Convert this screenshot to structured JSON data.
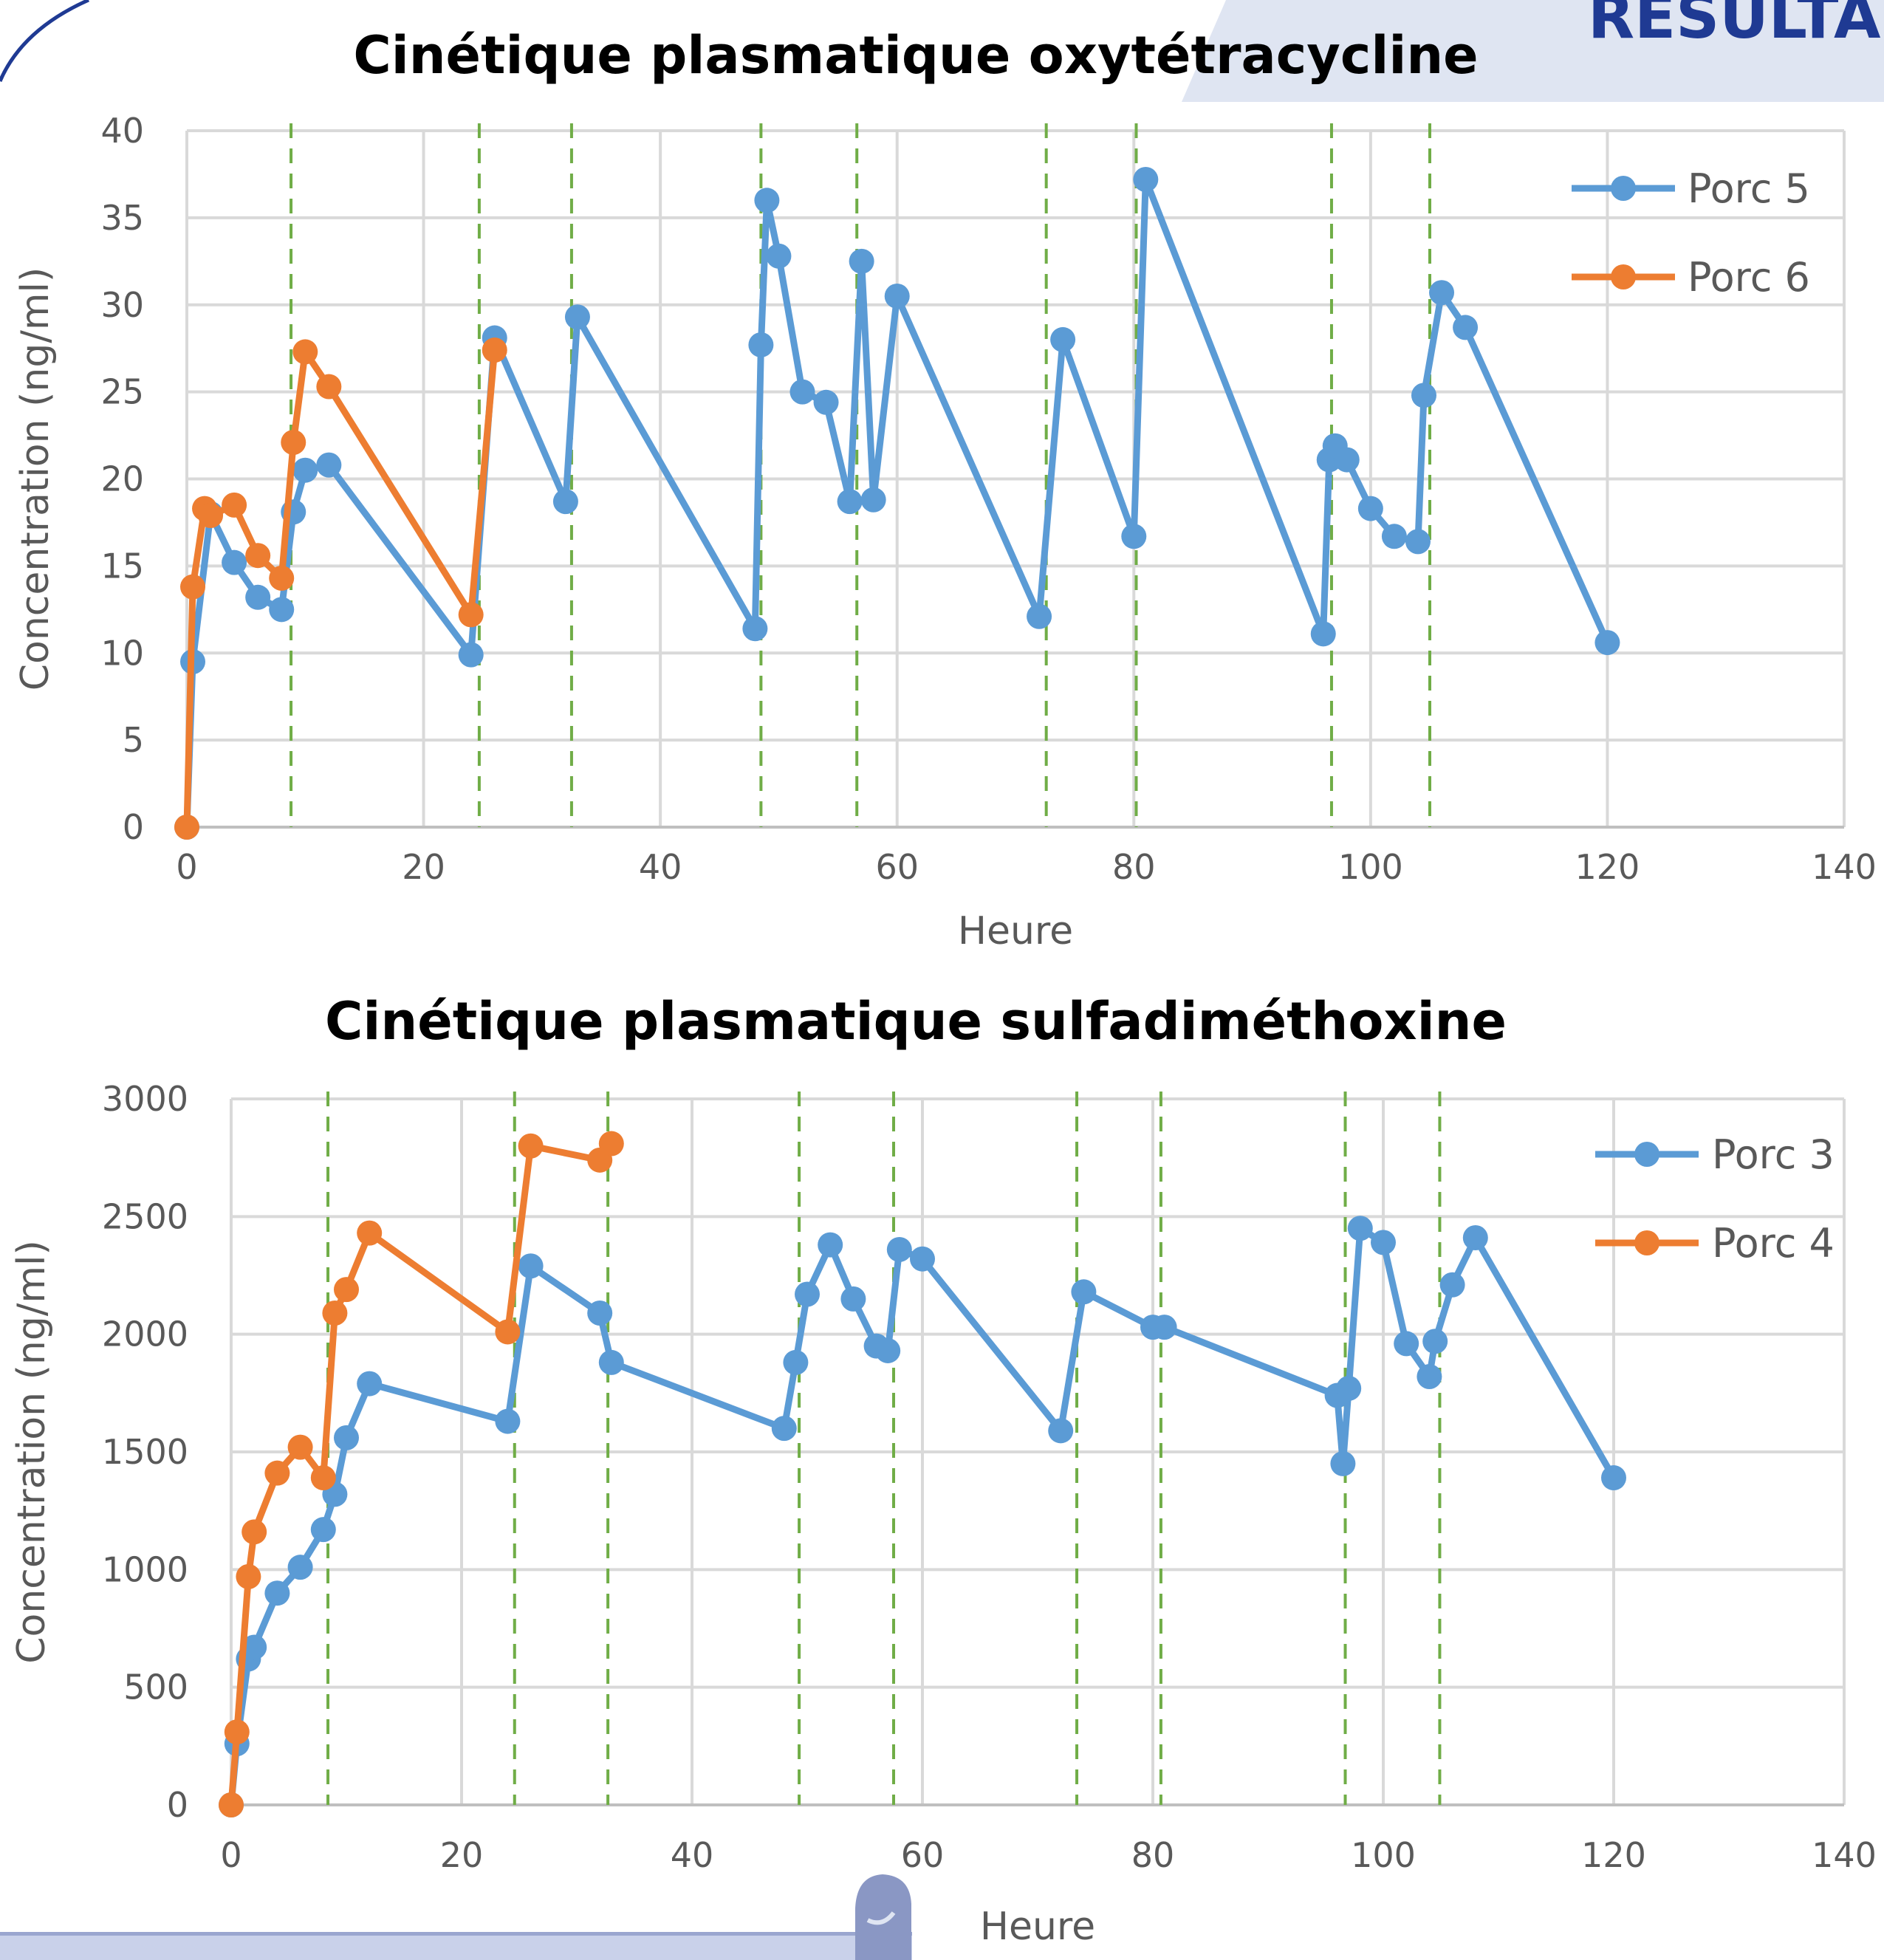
{
  "header": {
    "text": "RESULTA",
    "accent": "#1f3a93",
    "band_color": "#dfe5f2"
  },
  "colors": {
    "series_a": "#5b9bd5",
    "series_b": "#ed7d31",
    "dose_lines": "#70ad47",
    "grid": "#d9d9d9",
    "axis_text": "#595959"
  },
  "chart_data": [
    {
      "type": "line",
      "title": "Cinétique plasmatique oxytétracycline",
      "xlabel": "Heure",
      "ylabel": "Concentration (ng/ml)",
      "xlim": [
        0,
        140
      ],
      "ylim": [
        0,
        40
      ],
      "xticks": [
        "0",
        "20",
        "40",
        "60",
        "80",
        "100",
        "120",
        "140"
      ],
      "yticks": [
        "0",
        "5",
        "10",
        "15",
        "20",
        "25",
        "30",
        "35",
        "40"
      ],
      "grid": true,
      "legend_position": "top-right",
      "dose_lines": [
        8.8,
        24.7,
        32.5,
        48.5,
        56.6,
        72.6,
        80.2,
        96.7,
        105
      ],
      "series": [
        {
          "name": "Porc 5",
          "color": "#5b9bd5",
          "x": [
            0,
            0.5,
            2,
            4,
            6,
            8,
            9,
            10,
            12,
            24,
            26,
            32,
            33,
            48,
            48.5,
            49,
            50,
            52,
            54,
            56,
            57,
            58,
            60,
            72,
            74,
            80,
            81,
            96,
            96.5,
            97,
            98,
            100,
            102,
            104,
            104.5,
            106,
            108,
            120
          ],
          "y": [
            0,
            9.5,
            18,
            15.2,
            13.2,
            12.5,
            18.1,
            20.5,
            20.8,
            9.9,
            28.1,
            18.7,
            29.3,
            11.4,
            27.7,
            36,
            32.8,
            25,
            24.4,
            18.7,
            32.5,
            18.8,
            30.5,
            12.1,
            28,
            16.7,
            37.2,
            11.1,
            21.1,
            21.9,
            21.1,
            18.3,
            16.7,
            16.4,
            24.8,
            30.7,
            28.7,
            10.6
          ]
        },
        {
          "name": "Porc 6",
          "color": "#ed7d31",
          "x": [
            0,
            0.5,
            1.5,
            2,
            4,
            6,
            8,
            9,
            10,
            12,
            24,
            26
          ],
          "y": [
            0,
            13.8,
            18.3,
            17.9,
            18.5,
            15.6,
            14.3,
            22.1,
            27.3,
            25.3,
            12.2,
            27.4
          ]
        }
      ]
    },
    {
      "type": "line",
      "title": "Cinétique plasmatique sulfadiméthoxine",
      "xlabel": "Heure",
      "ylabel": "Concentration (ng/ml)",
      "xlim": [
        0,
        140
      ],
      "ylim": [
        0,
        3000
      ],
      "xticks": [
        "0",
        "20",
        "40",
        "60",
        "80",
        "100",
        "120",
        "140"
      ],
      "yticks": [
        "0",
        "500",
        "1000",
        "1500",
        "2000",
        "2500",
        "3000"
      ],
      "grid": true,
      "legend_position": "top-right",
      "dose_lines": [
        8.4,
        24.6,
        32.7,
        49.3,
        57.5,
        73.4,
        80.7,
        96.7,
        104.9
      ],
      "series": [
        {
          "name": "Porc 3",
          "color": "#5b9bd5",
          "x": [
            0,
            0.5,
            1.5,
            2,
            4,
            6,
            8,
            9,
            10,
            12,
            24,
            26,
            32,
            33,
            48,
            49,
            50,
            52,
            54,
            56,
            57,
            58,
            60,
            72,
            74,
            80,
            81,
            96,
            96.5,
            97,
            98,
            100,
            102,
            104,
            104.5,
            106,
            108,
            120
          ],
          "y": [
            0,
            260,
            620,
            670,
            900,
            1010,
            1170,
            1320,
            1560,
            1790,
            1630,
            2290,
            2090,
            1880,
            1600,
            1880,
            2170,
            2380,
            2150,
            1950,
            1930,
            2360,
            2320,
            1590,
            2180,
            2030,
            2030,
            1740,
            1450,
            1770,
            2450,
            2390,
            1960,
            1820,
            1970,
            2210,
            2410,
            1390
          ]
        },
        {
          "name": "Porc 4",
          "color": "#ed7d31",
          "x": [
            0,
            0.5,
            1.5,
            2,
            4,
            6,
            8,
            9,
            10,
            12,
            24,
            26,
            32,
            33
          ],
          "y": [
            0,
            310,
            970,
            1160,
            1410,
            1520,
            1390,
            2090,
            2190,
            2430,
            2010,
            2800,
            2740,
            2810
          ]
        }
      ]
    }
  ]
}
